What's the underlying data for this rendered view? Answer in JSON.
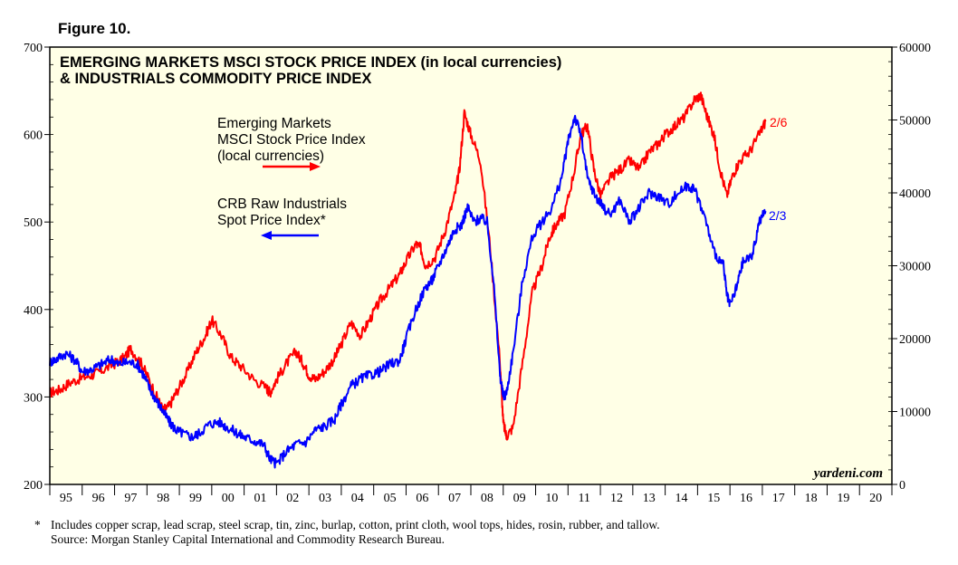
{
  "figure_label": "Figure 10.",
  "chart_data": {
    "type": "line",
    "title_lines": [
      "EMERGING MARKETS MSCI STOCK PRICE INDEX (in local currencies)",
      "& INDUSTRIALS COMMODITY PRICE INDEX"
    ],
    "x_ticks": [
      "95",
      "96",
      "97",
      "98",
      "99",
      "00",
      "01",
      "02",
      "03",
      "04",
      "05",
      "06",
      "07",
      "08",
      "09",
      "10",
      "11",
      "12",
      "13",
      "14",
      "15",
      "16",
      "17",
      "18",
      "19",
      "20"
    ],
    "x_range": [
      1995,
      2021
    ],
    "left_axis": {
      "ylim": [
        200,
        700
      ],
      "ticks": [
        "200",
        "300",
        "400",
        "500",
        "600",
        "700"
      ]
    },
    "right_axis": {
      "ylim": [
        0,
        60000
      ],
      "ticks": [
        "0",
        "10000",
        "20000",
        "30000",
        "40000",
        "50000",
        "60000"
      ]
    },
    "series": [
      {
        "name": "Emerging Markets MSCI Stock Price Index (local currencies)",
        "legend_lines": [
          "Emerging Markets",
          "MSCI Stock Price Index",
          "(local currencies)"
        ],
        "axis": "left",
        "color": "#ff0000",
        "end_label": "2/6",
        "x": [
          1995.0,
          1995.3,
          1995.6,
          1996.0,
          1996.3,
          1996.6,
          1997.0,
          1997.3,
          1997.5,
          1997.8,
          1998.0,
          1998.3,
          1998.5,
          1998.7,
          1998.9,
          1999.2,
          1999.5,
          1999.8,
          2000.0,
          2000.3,
          2000.6,
          2000.9,
          2001.3,
          2001.7,
          2001.8,
          2002.0,
          2002.3,
          2002.6,
          2002.8,
          2003.0,
          2003.2,
          2003.5,
          2003.8,
          2004.0,
          2004.3,
          2004.6,
          2004.9,
          2005.2,
          2005.5,
          2005.8,
          2006.0,
          2006.3,
          2006.45,
          2006.6,
          2006.9,
          2007.2,
          2007.5,
          2007.65,
          2007.8,
          2008.0,
          2008.3,
          2008.6,
          2008.9,
          2009.0,
          2009.1,
          2009.3,
          2009.6,
          2009.9,
          2010.2,
          2010.4,
          2010.6,
          2010.9,
          2011.2,
          2011.4,
          2011.6,
          2011.8,
          2012.0,
          2012.3,
          2012.6,
          2012.9,
          2013.2,
          2013.5,
          2013.8,
          2014.0,
          2014.3,
          2014.6,
          2014.9,
          2015.1,
          2015.3,
          2015.5,
          2015.7,
          2015.9,
          2016.1,
          2016.3,
          2016.6,
          2016.9,
          2017.1
        ],
        "values": [
          305,
          308,
          316,
          322,
          325,
          330,
          338,
          345,
          355,
          340,
          325,
          300,
          285,
          290,
          305,
          325,
          350,
          370,
          388,
          370,
          345,
          335,
          320,
          310,
          305,
          320,
          338,
          352,
          340,
          325,
          320,
          330,
          345,
          360,
          385,
          370,
          390,
          410,
          425,
          440,
          455,
          475,
          470,
          450,
          460,
          490,
          530,
          560,
          625,
          600,
          570,
          470,
          340,
          270,
          255,
          265,
          340,
          420,
          450,
          480,
          495,
          510,
          560,
          600,
          610,
          560,
          530,
          550,
          560,
          570,
          560,
          580,
          590,
          600,
          610,
          620,
          640,
          645,
          620,
          600,
          560,
          530,
          555,
          570,
          580,
          600,
          615
        ]
      },
      {
        "name": "CRB Raw Industrials Spot Price Index*",
        "legend_lines": [
          "CRB Raw Industrials",
          "Spot Price Index*"
        ],
        "axis": "right",
        "color": "#0000ff",
        "end_label": "2/3",
        "x": [
          1995.0,
          1995.2,
          1995.5,
          1995.8,
          1996.0,
          1996.3,
          1996.6,
          1996.9,
          1997.1,
          1997.4,
          1997.7,
          1997.9,
          1998.1,
          1998.3,
          1998.5,
          1998.7,
          1998.9,
          1999.1,
          1999.4,
          1999.6,
          1999.9,
          2000.2,
          2000.5,
          2000.8,
          2001.0,
          2001.3,
          2001.6,
          2001.8,
          2002.0,
          2002.3,
          2002.6,
          2002.9,
          2003.2,
          2003.5,
          2003.8,
          2004.0,
          2004.3,
          2004.6,
          2004.9,
          2005.2,
          2005.5,
          2005.8,
          2006.0,
          2006.3,
          2006.6,
          2006.8,
          2007.0,
          2007.3,
          2007.5,
          2007.7,
          2007.9,
          2008.1,
          2008.3,
          2008.5,
          2008.7,
          2008.9,
          2009.0,
          2009.1,
          2009.3,
          2009.6,
          2009.9,
          2010.2,
          2010.5,
          2010.8,
          2011.0,
          2011.2,
          2011.4,
          2011.6,
          2011.8,
          2012.0,
          2012.3,
          2012.6,
          2012.9,
          2013.2,
          2013.5,
          2013.8,
          2014.1,
          2014.4,
          2014.7,
          2014.9,
          2015.2,
          2015.5,
          2015.8,
          2015.9,
          2016.0,
          2016.2,
          2016.4,
          2016.7,
          2016.9,
          2017.1
        ],
        "values": [
          16800,
          17200,
          18000,
          17000,
          15500,
          15800,
          16500,
          17200,
          16500,
          16800,
          16500,
          15000,
          13000,
          11500,
          10000,
          8500,
          7500,
          7000,
          6500,
          7000,
          8200,
          8600,
          7800,
          7000,
          6500,
          6000,
          5500,
          3500,
          2800,
          4500,
          5500,
          5800,
          7500,
          8000,
          9000,
          11000,
          13500,
          14500,
          15000,
          15500,
          16500,
          17000,
          20000,
          24000,
          27000,
          28000,
          30000,
          33000,
          35000,
          35500,
          38000,
          36000,
          36500,
          36000,
          28000,
          15000,
          12000,
          12500,
          18000,
          28000,
          34000,
          36000,
          38000,
          42000,
          47000,
          50500,
          48000,
          42000,
          40000,
          38500,
          37000,
          39000,
          36000,
          38000,
          40000,
          39500,
          38500,
          40000,
          41000,
          40500,
          37000,
          32000,
          30000,
          26000,
          24500,
          27000,
          30500,
          31500,
          36000,
          37500
        ]
      }
    ],
    "watermark": "yardeni.com",
    "footnote_lines": [
      "Includes copper scrap, lead scrap, steel scrap, tin, zinc, burlap, cotton, print cloth, wool tops, hides, rosin, rubber, and tallow.",
      "Source: Morgan Stanley Capital International and Commodity Research Bureau."
    ],
    "footnote_marker": "*"
  }
}
